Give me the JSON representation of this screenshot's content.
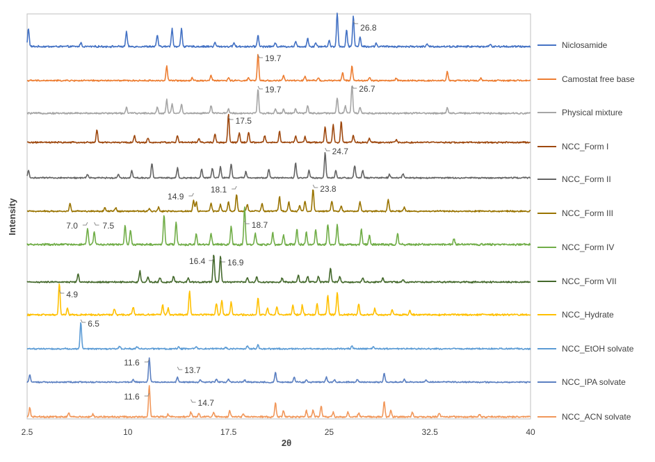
{
  "chart_data": {
    "type": "line",
    "subtype": "stacked-offset XRPD patterns",
    "xlabel": "2θ",
    "ylabel": "Intensity",
    "xlim": [
      2.5,
      40
    ],
    "x_ticks": [
      "2.5",
      "10",
      "17.5",
      "25",
      "32.5",
      "40"
    ],
    "grid": false,
    "legend_position": "right",
    "series": [
      {
        "name": "Niclosamide",
        "color": "#4472C4",
        "peaks": [
          [
            2.6,
            0.55
          ],
          [
            6.5,
            0.12
          ],
          [
            9.9,
            0.45
          ],
          [
            12.2,
            0.35
          ],
          [
            13.3,
            0.55
          ],
          [
            14.0,
            0.55
          ],
          [
            16.5,
            0.12
          ],
          [
            17.9,
            0.12
          ],
          [
            19.7,
            0.35
          ],
          [
            21.0,
            0.12
          ],
          [
            22.5,
            0.15
          ],
          [
            23.4,
            0.25
          ],
          [
            24.0,
            0.12
          ],
          [
            25.0,
            0.18
          ],
          [
            25.6,
            1.0
          ],
          [
            26.3,
            0.5
          ],
          [
            26.8,
            0.9
          ],
          [
            27.3,
            0.3
          ],
          [
            28.5,
            0.1
          ],
          [
            32.3,
            0.07
          ],
          [
            37.0,
            0.06
          ]
        ]
      },
      {
        "name": "Camostat free base",
        "color": "#ED7D31",
        "peaks": [
          [
            12.9,
            0.55
          ],
          [
            14.8,
            0.12
          ],
          [
            16.2,
            0.2
          ],
          [
            17.5,
            0.1
          ],
          [
            19.0,
            0.1
          ],
          [
            19.7,
            1.0
          ],
          [
            21.6,
            0.2
          ],
          [
            23.2,
            0.15
          ],
          [
            24.2,
            0.12
          ],
          [
            26.0,
            0.3
          ],
          [
            26.7,
            0.55
          ],
          [
            28.0,
            0.12
          ],
          [
            30.0,
            0.1
          ],
          [
            33.8,
            0.35
          ],
          [
            36.3,
            0.1
          ]
        ]
      },
      {
        "name": "Physical mixture",
        "color": "#A5A5A5",
        "peaks": [
          [
            9.9,
            0.2
          ],
          [
            12.2,
            0.2
          ],
          [
            12.9,
            0.45
          ],
          [
            13.3,
            0.3
          ],
          [
            14.0,
            0.3
          ],
          [
            16.2,
            0.25
          ],
          [
            17.5,
            0.15
          ],
          [
            19.7,
            0.8
          ],
          [
            21.0,
            0.15
          ],
          [
            21.6,
            0.15
          ],
          [
            22.5,
            0.15
          ],
          [
            23.4,
            0.25
          ],
          [
            25.6,
            0.5
          ],
          [
            26.2,
            0.25
          ],
          [
            26.7,
            0.95
          ],
          [
            27.3,
            0.2
          ],
          [
            33.8,
            0.2
          ]
        ]
      },
      {
        "name": "NCC_Form I",
        "color": "#9E480E",
        "peaks": [
          [
            7.7,
            0.45
          ],
          [
            10.5,
            0.25
          ],
          [
            11.5,
            0.15
          ],
          [
            13.7,
            0.25
          ],
          [
            15.3,
            0.15
          ],
          [
            16.5,
            0.3
          ],
          [
            17.5,
            1.0
          ],
          [
            18.3,
            0.35
          ],
          [
            19.0,
            0.35
          ],
          [
            20.2,
            0.25
          ],
          [
            21.3,
            0.4
          ],
          [
            22.5,
            0.25
          ],
          [
            23.2,
            0.2
          ],
          [
            24.7,
            0.55
          ],
          [
            25.3,
            0.65
          ],
          [
            25.9,
            0.75
          ],
          [
            26.8,
            0.25
          ],
          [
            28.0,
            0.15
          ],
          [
            30.0,
            0.1
          ]
        ]
      },
      {
        "name": "NCC_Form II",
        "color": "#636363",
        "peaks": [
          [
            2.6,
            0.3
          ],
          [
            7.0,
            0.15
          ],
          [
            9.3,
            0.15
          ],
          [
            10.3,
            0.3
          ],
          [
            11.8,
            0.6
          ],
          [
            13.7,
            0.4
          ],
          [
            15.5,
            0.35
          ],
          [
            16.3,
            0.4
          ],
          [
            16.9,
            0.45
          ],
          [
            17.7,
            0.55
          ],
          [
            18.8,
            0.25
          ],
          [
            20.5,
            0.35
          ],
          [
            22.5,
            0.6
          ],
          [
            23.5,
            0.3
          ],
          [
            24.7,
            1.0
          ],
          [
            25.5,
            0.3
          ],
          [
            26.9,
            0.5
          ],
          [
            27.5,
            0.3
          ],
          [
            29.5,
            0.15
          ],
          [
            30.5,
            0.15
          ]
        ]
      },
      {
        "name": "NCC_Form III",
        "color": "#997300",
        "peaks": [
          [
            5.7,
            0.3
          ],
          [
            8.3,
            0.15
          ],
          [
            9.1,
            0.15
          ],
          [
            11.6,
            0.1
          ],
          [
            12.3,
            0.15
          ],
          [
            14.9,
            0.4
          ],
          [
            15.1,
            0.35
          ],
          [
            16.2,
            0.3
          ],
          [
            16.9,
            0.25
          ],
          [
            17.5,
            0.35
          ],
          [
            18.1,
            0.65
          ],
          [
            18.9,
            0.25
          ],
          [
            20.0,
            0.3
          ],
          [
            21.3,
            0.55
          ],
          [
            22.0,
            0.35
          ],
          [
            22.8,
            0.2
          ],
          [
            23.2,
            0.4
          ],
          [
            23.8,
            0.85
          ],
          [
            25.2,
            0.4
          ],
          [
            25.9,
            0.2
          ],
          [
            27.3,
            0.35
          ],
          [
            29.4,
            0.45
          ],
          [
            30.6,
            0.15
          ]
        ]
      },
      {
        "name": "NCC_Form IV",
        "color": "#70AD47",
        "peaks": [
          [
            7.0,
            0.45
          ],
          [
            7.5,
            0.35
          ],
          [
            9.8,
            0.5
          ],
          [
            10.2,
            0.4
          ],
          [
            12.7,
            0.8
          ],
          [
            13.6,
            0.6
          ],
          [
            15.1,
            0.3
          ],
          [
            16.2,
            0.3
          ],
          [
            17.7,
            0.5
          ],
          [
            18.7,
            1.0
          ],
          [
            19.5,
            0.3
          ],
          [
            20.8,
            0.3
          ],
          [
            21.6,
            0.25
          ],
          [
            22.6,
            0.4
          ],
          [
            23.3,
            0.35
          ],
          [
            24.0,
            0.4
          ],
          [
            24.9,
            0.55
          ],
          [
            25.6,
            0.55
          ],
          [
            27.4,
            0.4
          ],
          [
            28.0,
            0.25
          ],
          [
            30.1,
            0.3
          ],
          [
            34.3,
            0.15
          ]
        ]
      },
      {
        "name": "NCC_Form VII",
        "color": "#43682B",
        "peaks": [
          [
            6.3,
            0.3
          ],
          [
            10.9,
            0.4
          ],
          [
            11.5,
            0.2
          ],
          [
            12.4,
            0.15
          ],
          [
            13.4,
            0.2
          ],
          [
            14.5,
            0.15
          ],
          [
            16.4,
            1.0
          ],
          [
            16.9,
            0.95
          ],
          [
            18.9,
            0.15
          ],
          [
            19.6,
            0.2
          ],
          [
            21.5,
            0.15
          ],
          [
            22.7,
            0.25
          ],
          [
            23.4,
            0.2
          ],
          [
            24.2,
            0.2
          ],
          [
            25.1,
            0.5
          ],
          [
            25.8,
            0.2
          ],
          [
            27.5,
            0.15
          ],
          [
            29.0,
            0.15
          ],
          [
            30.5,
            0.1
          ]
        ]
      },
      {
        "name": "NCC_Hydrate",
        "color": "#FFC000",
        "peaks": [
          [
            4.9,
            1.0
          ],
          [
            5.5,
            0.2
          ],
          [
            9.0,
            0.2
          ],
          [
            10.4,
            0.25
          ],
          [
            12.6,
            0.3
          ],
          [
            13.0,
            0.2
          ],
          [
            14.6,
            0.75
          ],
          [
            16.6,
            0.35
          ],
          [
            17.0,
            0.45
          ],
          [
            17.7,
            0.4
          ],
          [
            19.7,
            0.55
          ],
          [
            20.4,
            0.2
          ],
          [
            21.1,
            0.25
          ],
          [
            22.3,
            0.3
          ],
          [
            23.0,
            0.3
          ],
          [
            24.1,
            0.35
          ],
          [
            24.9,
            0.6
          ],
          [
            25.6,
            0.7
          ],
          [
            27.2,
            0.35
          ],
          [
            28.4,
            0.2
          ],
          [
            29.7,
            0.15
          ],
          [
            31.0,
            0.12
          ]
        ]
      },
      {
        "name": "NCC_EtOH solvate",
        "color": "#5B9BD5",
        "peaks": [
          [
            6.5,
            1.0
          ],
          [
            9.4,
            0.1
          ],
          [
            10.7,
            0.08
          ],
          [
            13.8,
            0.08
          ],
          [
            15.1,
            0.08
          ],
          [
            17.3,
            0.06
          ],
          [
            18.9,
            0.1
          ],
          [
            19.7,
            0.15
          ],
          [
            26.7,
            0.12
          ],
          [
            28.3,
            0.07
          ]
        ]
      },
      {
        "name": "NCC_IPA solvate",
        "color": "#5A7FC1",
        "peaks": [
          [
            2.7,
            0.3
          ],
          [
            10.4,
            0.1
          ],
          [
            11.6,
            1.0
          ],
          [
            13.7,
            0.2
          ],
          [
            15.4,
            0.1
          ],
          [
            16.6,
            0.12
          ],
          [
            17.5,
            0.12
          ],
          [
            18.7,
            0.1
          ],
          [
            21.0,
            0.4
          ],
          [
            22.4,
            0.2
          ],
          [
            23.3,
            0.1
          ],
          [
            24.8,
            0.2
          ],
          [
            25.4,
            0.1
          ],
          [
            27.1,
            0.12
          ],
          [
            29.1,
            0.35
          ],
          [
            30.6,
            0.12
          ],
          [
            32.2,
            0.08
          ]
        ]
      },
      {
        "name": "NCC_ACN solvate",
        "color": "#F1975A",
        "peaks": [
          [
            2.7,
            0.3
          ],
          [
            5.6,
            0.12
          ],
          [
            7.4,
            0.08
          ],
          [
            11.6,
            1.0
          ],
          [
            13.0,
            0.08
          ],
          [
            14.7,
            0.15
          ],
          [
            15.3,
            0.12
          ],
          [
            16.4,
            0.15
          ],
          [
            17.6,
            0.2
          ],
          [
            18.6,
            0.1
          ],
          [
            21.0,
            0.45
          ],
          [
            21.6,
            0.2
          ],
          [
            23.3,
            0.2
          ],
          [
            23.8,
            0.22
          ],
          [
            24.4,
            0.35
          ],
          [
            25.3,
            0.15
          ],
          [
            26.4,
            0.15
          ],
          [
            27.2,
            0.12
          ],
          [
            29.1,
            0.5
          ],
          [
            29.6,
            0.2
          ],
          [
            31.2,
            0.15
          ],
          [
            33.2,
            0.12
          ],
          [
            36.2,
            0.08
          ]
        ]
      }
    ],
    "annotations": [
      {
        "text": "26.8",
        "series": "Niclosamide",
        "x": 26.8
      },
      {
        "text": "19.7",
        "series": "Camostat free base",
        "x": 19.7
      },
      {
        "text": "19.7",
        "series": "Physical mixture",
        "x": 19.7
      },
      {
        "text": "26.7",
        "series": "Physical mixture",
        "x": 26.7
      },
      {
        "text": "17.5",
        "series": "NCC_Form I",
        "x": 17.5
      },
      {
        "text": "24.7",
        "series": "NCC_Form II",
        "x": 24.7
      },
      {
        "text": "14.9",
        "series": "NCC_Form III",
        "x": 14.9
      },
      {
        "text": "18.1",
        "series": "NCC_Form III",
        "x": 18.1
      },
      {
        "text": "23.8",
        "series": "NCC_Form III",
        "x": 23.8
      },
      {
        "text": "7.0",
        "series": "NCC_Form IV",
        "x": 7.0
      },
      {
        "text": "7.5",
        "series": "NCC_Form IV",
        "x": 7.5
      },
      {
        "text": "18.7",
        "series": "NCC_Form IV",
        "x": 18.7
      },
      {
        "text": "16.4",
        "series": "NCC_Form VII",
        "x": 16.4
      },
      {
        "text": "16.9",
        "series": "NCC_Form VII",
        "x": 16.9
      },
      {
        "text": "4.9",
        "series": "NCC_Hydrate",
        "x": 4.9
      },
      {
        "text": "6.5",
        "series": "NCC_EtOH solvate",
        "x": 6.5
      },
      {
        "text": "11.6",
        "series": "NCC_IPA solvate",
        "x": 11.6
      },
      {
        "text": "13.7",
        "series": "NCC_IPA solvate",
        "x": 13.7
      },
      {
        "text": "11.6",
        "series": "NCC_ACN solvate",
        "x": 11.6
      },
      {
        "text": "14.7",
        "series": "NCC_ACN solvate",
        "x": 14.7
      }
    ]
  }
}
